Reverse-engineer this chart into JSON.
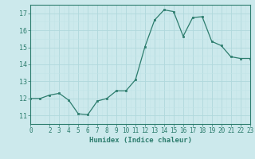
{
  "x": [
    0,
    1,
    2,
    3,
    4,
    5,
    6,
    7,
    8,
    9,
    10,
    11,
    12,
    13,
    14,
    15,
    16,
    17,
    18,
    19,
    20,
    21,
    22,
    23
  ],
  "y": [
    12.0,
    12.0,
    12.2,
    12.3,
    11.9,
    11.1,
    11.05,
    11.85,
    12.0,
    12.45,
    12.45,
    13.1,
    15.05,
    16.6,
    17.2,
    17.1,
    15.65,
    16.75,
    16.8,
    15.35,
    15.1,
    14.45,
    14.35,
    14.35
  ],
  "xlim": [
    0,
    23
  ],
  "ylim": [
    10.75,
    17.35
  ],
  "yticks": [
    11,
    12,
    13,
    14,
    15,
    16,
    17
  ],
  "xticks": [
    0,
    2,
    3,
    4,
    5,
    6,
    7,
    8,
    9,
    10,
    11,
    12,
    13,
    14,
    15,
    16,
    17,
    18,
    19,
    20,
    21,
    22,
    23
  ],
  "xlabel": "Humidex (Indice chaleur)",
  "line_color": "#2d7d6e",
  "marker": "s",
  "marker_size": 1.8,
  "bg_color": "#cce9ec",
  "grid_major_color": "#b0d8dc",
  "grid_minor_color": "#c2e4e8",
  "tick_color": "#2d7d6e",
  "label_color": "#2d7d6e",
  "tick_fontsize": 5.5,
  "xlabel_fontsize": 6.5,
  "linewidth": 0.9
}
